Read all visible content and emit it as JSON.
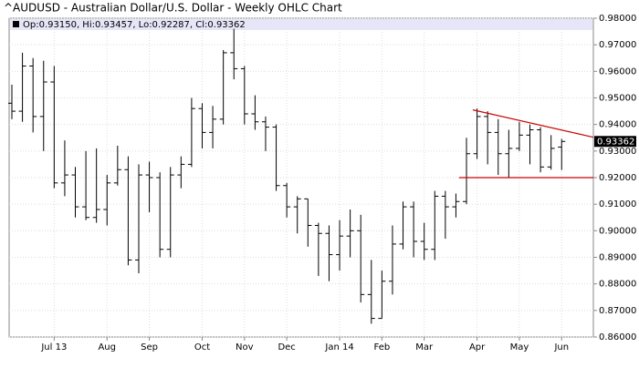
{
  "chart_data": {
    "type": "ohlc",
    "title": "^AUDUSD - Australian Dollar/U.S. Dollar - Weekly OHLC Chart",
    "info": "Op:0.93150, Hi:0.93457, Lo:0.92287, Cl:0.93362",
    "categories": [
      null,
      null,
      null,
      null,
      "Jul 13",
      null,
      null,
      null,
      null,
      "Aug",
      null,
      null,
      null,
      "Sep",
      null,
      null,
      null,
      null,
      "Oct",
      null,
      null,
      null,
      "Nov",
      null,
      null,
      null,
      "Dec",
      null,
      null,
      null,
      null,
      "Jan 14",
      null,
      null,
      null,
      "Feb",
      null,
      null,
      null,
      "Mar",
      null,
      null,
      null,
      null,
      "Apr",
      null,
      null,
      null,
      "May",
      null,
      null,
      null,
      "Jun"
    ],
    "open": [
      0.948,
      0.945,
      0.962,
      0.943,
      0.956,
      0.918,
      0.921,
      0.909,
      0.905,
      0.908,
      0.918,
      0.923,
      0.889,
      0.921,
      0.92,
      0.893,
      0.921,
      0.925,
      0.946,
      0.937,
      0.942,
      0.967,
      0.961,
      0.944,
      0.941,
      0.939,
      0.917,
      0.909,
      0.912,
      0.902,
      0.899,
      0.891,
      0.898,
      0.9,
      0.876,
      0.867,
      0.881,
      0.895,
      0.909,
      0.896,
      0.893,
      0.913,
      0.909,
      0.911,
      0.929,
      0.943,
      0.937,
      0.929,
      0.931,
      0.936,
      0.938,
      0.924,
      0.9315
    ],
    "high": [
      0.955,
      0.967,
      0.965,
      0.964,
      0.962,
      0.934,
      0.924,
      0.93,
      0.931,
      0.921,
      0.932,
      0.928,
      0.925,
      0.926,
      0.922,
      0.924,
      0.928,
      0.95,
      0.948,
      0.947,
      0.968,
      0.976,
      0.962,
      0.951,
      0.943,
      0.94,
      0.918,
      0.913,
      0.912,
      0.903,
      0.902,
      0.904,
      0.908,
      0.906,
      0.889,
      0.885,
      0.902,
      0.911,
      0.911,
      0.903,
      0.915,
      0.915,
      0.914,
      0.935,
      0.946,
      0.945,
      0.942,
      0.938,
      0.941,
      0.94,
      0.939,
      0.936,
      0.93457
    ],
    "low": [
      0.942,
      0.941,
      0.937,
      0.93,
      0.916,
      0.913,
      0.905,
      0.904,
      0.903,
      0.902,
      0.917,
      0.887,
      0.884,
      0.907,
      0.89,
      0.89,
      0.916,
      0.924,
      0.931,
      0.931,
      0.94,
      0.957,
      0.94,
      0.938,
      0.93,
      0.915,
      0.905,
      0.899,
      0.894,
      0.883,
      0.881,
      0.885,
      0.89,
      0.873,
      0.865,
      0.867,
      0.876,
      0.893,
      0.89,
      0.889,
      0.889,
      0.897,
      0.905,
      0.91,
      0.927,
      0.925,
      0.921,
      0.92,
      0.93,
      0.925,
      0.922,
      0.923,
      0.92287
    ],
    "close": [
      0.945,
      0.962,
      0.943,
      0.956,
      0.918,
      0.921,
      0.909,
      0.905,
      0.908,
      0.918,
      0.923,
      0.889,
      0.921,
      0.92,
      0.893,
      0.921,
      0.925,
      0.946,
      0.937,
      0.942,
      0.967,
      0.961,
      0.944,
      0.941,
      0.939,
      0.917,
      0.909,
      0.912,
      0.902,
      0.899,
      0.891,
      0.898,
      0.9,
      0.876,
      0.867,
      0.881,
      0.895,
      0.909,
      0.896,
      0.893,
      0.913,
      0.909,
      0.911,
      0.929,
      0.943,
      0.937,
      0.929,
      0.931,
      0.936,
      0.938,
      0.924,
      0.931,
      0.93362
    ],
    "color": "#000000",
    "xlim": [
      -0.26,
      55
    ],
    "ylim": [
      0.86,
      0.98
    ],
    "yticks": [
      {
        "value": 0.86,
        "label": "0.86000"
      },
      {
        "value": 0.87,
        "label": "0.87000"
      },
      {
        "value": 0.88,
        "label": "0.88000"
      },
      {
        "value": 0.89,
        "label": "0.89000"
      },
      {
        "value": 0.9,
        "label": "0.90000"
      },
      {
        "value": 0.91,
        "label": "0.91000"
      },
      {
        "value": 0.92,
        "label": "0.92000"
      },
      {
        "value": 0.93,
        "label": "0.93000"
      },
      {
        "value": 0.94,
        "label": "0.94000"
      },
      {
        "value": 0.95,
        "label": "0.95000"
      },
      {
        "value": 0.96,
        "label": "0.96000"
      },
      {
        "value": 0.97,
        "label": "0.97000"
      },
      {
        "value": 0.98,
        "label": "0.98000"
      }
    ],
    "grid": true,
    "trendlines": [
      {
        "x": [
          43.6,
          55
        ],
        "y": [
          0.9455,
          0.9352
        ],
        "color": "#cc0000"
      },
      {
        "x": [
          42.3,
          55
        ],
        "y": [
          0.92,
          0.92
        ],
        "color": "#cc0000"
      }
    ]
  }
}
